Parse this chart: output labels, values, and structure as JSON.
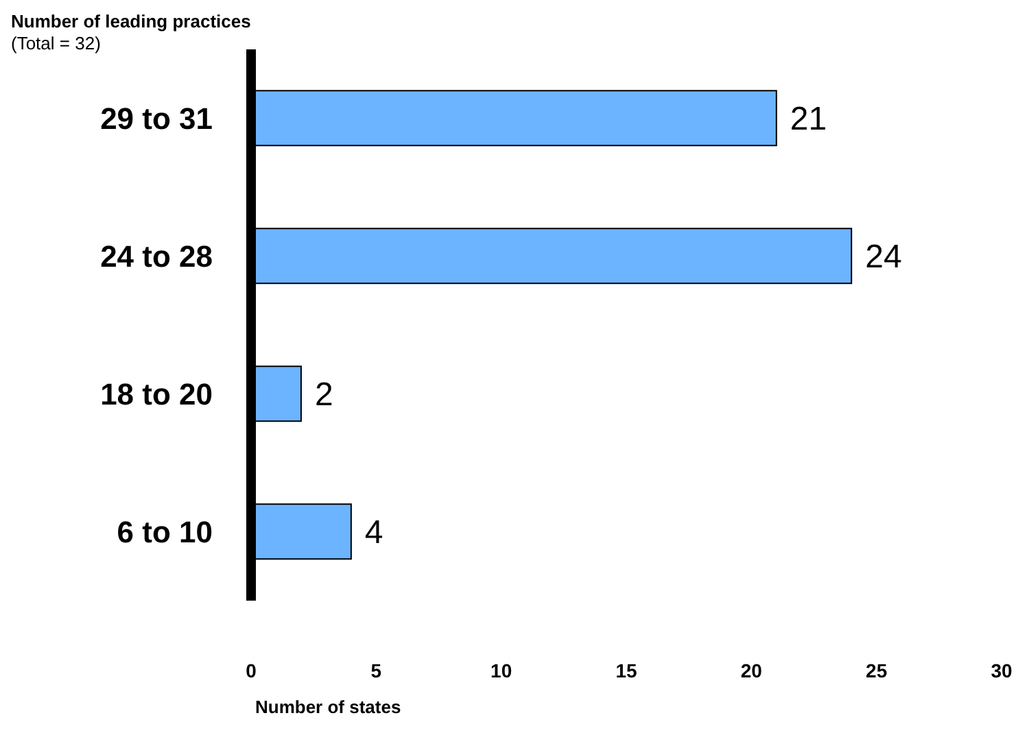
{
  "chart_data": {
    "type": "bar",
    "orientation": "horizontal",
    "ylabel": "Number of leading practices (Total = 32)",
    "xlabel": "Number of states",
    "categories": [
      "29 to 31",
      "24 to 28",
      "18 to 20",
      "6 to 10"
    ],
    "values": [
      21,
      24,
      2,
      4
    ],
    "color": "#6cb4ff",
    "xlim": [
      0,
      30
    ],
    "xticks": [
      0,
      5,
      10,
      15,
      20,
      25,
      30
    ],
    "grid": false,
    "data_labels": true
  }
}
